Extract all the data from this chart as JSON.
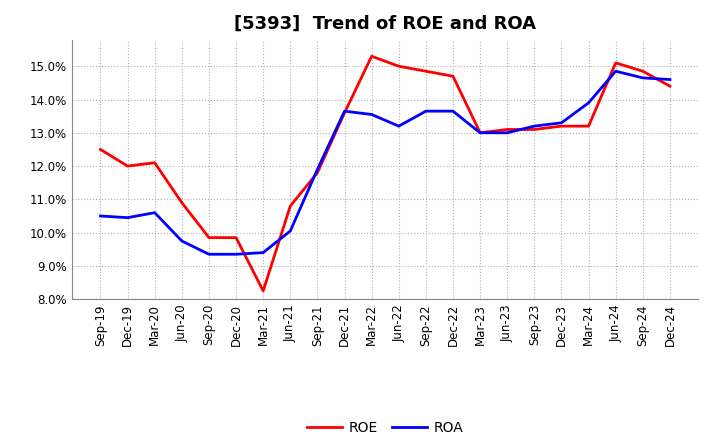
{
  "title": "[5393]  Trend of ROE and ROA",
  "labels": [
    "Sep-19",
    "Dec-19",
    "Mar-20",
    "Jun-20",
    "Sep-20",
    "Dec-20",
    "Mar-21",
    "Jun-21",
    "Sep-21",
    "Dec-21",
    "Mar-22",
    "Jun-22",
    "Sep-22",
    "Dec-22",
    "Mar-23",
    "Jun-23",
    "Sep-23",
    "Dec-23",
    "Mar-24",
    "Jun-24",
    "Sep-24",
    "Dec-24"
  ],
  "ROE": [
    12.5,
    12.0,
    12.1,
    10.9,
    9.85,
    9.85,
    8.25,
    10.8,
    11.8,
    13.6,
    15.3,
    15.0,
    14.85,
    14.7,
    13.0,
    13.1,
    13.1,
    13.2,
    13.2,
    15.1,
    14.85,
    14.4
  ],
  "ROA": [
    10.5,
    10.45,
    10.6,
    9.75,
    9.35,
    9.35,
    9.4,
    10.05,
    11.9,
    13.65,
    13.55,
    13.2,
    13.65,
    13.65,
    13.0,
    13.0,
    13.2,
    13.3,
    13.9,
    14.85,
    14.65,
    14.6
  ],
  "roe_color": "#ff0000",
  "roa_color": "#0000ff",
  "background_color": "#ffffff",
  "grid_color": "#b0b0b0",
  "ylim": [
    8.0,
    15.8
  ],
  "yticks": [
    8.0,
    9.0,
    10.0,
    11.0,
    12.0,
    13.0,
    14.0,
    15.0
  ],
  "legend_labels": [
    "ROE",
    "ROA"
  ],
  "title_fontsize": 13,
  "axis_fontsize": 8.5,
  "legend_fontsize": 10,
  "line_width": 2.0
}
